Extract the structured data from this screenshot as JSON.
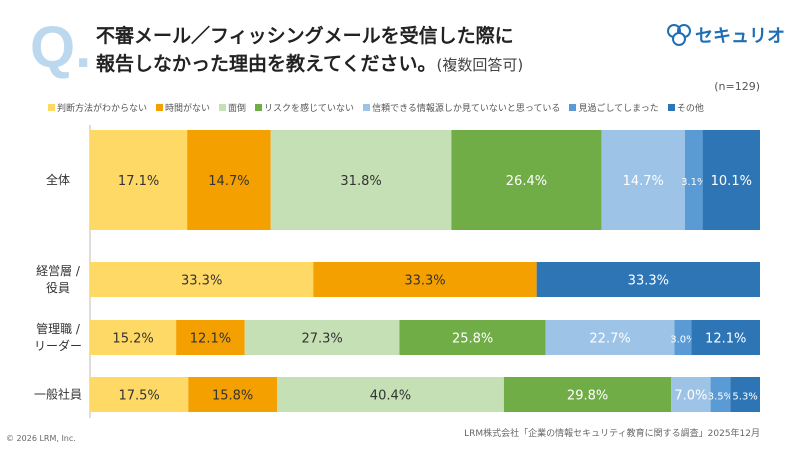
{
  "header": {
    "q_mark": "Q.",
    "title_line1": "不審メール／フィッシングメールを受信した際に",
    "title_line2": "報告しなかった理由を教えてください。",
    "title_note": "(複数回答可)",
    "logo_text": "セキュリオ"
  },
  "chart_data": {
    "type": "bar",
    "orientation": "horizontal",
    "stacked": "normalized",
    "sample_size": "(n=129)",
    "legend_placement": "top",
    "series": [
      {
        "name": "判断方法がわからない",
        "color": "#ffd966",
        "text": "#333"
      },
      {
        "name": "時間がない",
        "color": "#f4a000",
        "text": "#333"
      },
      {
        "name": "面倒",
        "color": "#c5e0b4",
        "text": "#333"
      },
      {
        "name": "リスクを感じていない",
        "color": "#70ad47",
        "text": "#fff"
      },
      {
        "name": "信頼できる情報源しか見ていないと思っている",
        "color": "#9dc3e6",
        "text": "#fff"
      },
      {
        "name": "見過ごしてしまった",
        "color": "#5b9bd5",
        "text": "#fff"
      },
      {
        "name": "その他",
        "color": "#2e75b6",
        "text": "#fff"
      }
    ],
    "categories": [
      "全体",
      "経営層 /\n役員",
      "管理職 /\nリーダー",
      "一般社員"
    ],
    "values": [
      [
        17.1,
        14.7,
        31.8,
        26.4,
        14.7,
        3.1,
        10.1
      ],
      [
        33.3,
        33.3,
        0,
        0,
        0,
        0,
        33.3
      ],
      [
        15.2,
        12.1,
        27.3,
        25.8,
        22.7,
        3.0,
        12.1
      ],
      [
        17.5,
        15.8,
        40.4,
        29.8,
        7.0,
        3.5,
        5.3
      ]
    ]
  },
  "footer": {
    "source": "LRM株式会社「企業の情報セキュリティ教育に関する調査」2025年12月",
    "copyright": "© 2026 LRM, Inc."
  }
}
